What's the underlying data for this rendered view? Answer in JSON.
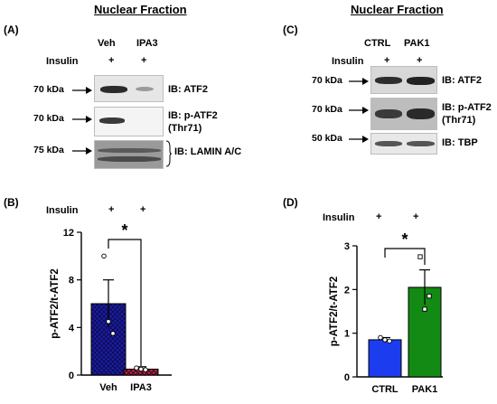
{
  "panelA": {
    "panel_label": "(A)",
    "title": "Nuclear Fraction",
    "lanes": [
      "Veh",
      "IPA3"
    ],
    "treatment_label": "Insulin",
    "treatment_marks": [
      "+",
      "+"
    ],
    "rows": [
      {
        "size": "70 kDa",
        "antibody": "IB: ATF2",
        "antibody_line2": ""
      },
      {
        "size": "70 kDa",
        "antibody": "IB: p-ATF2",
        "antibody_line2": "(Thr71)"
      },
      {
        "size": "75 kDa",
        "antibody": "IB: LAMIN A/C",
        "antibody_line2": ""
      }
    ]
  },
  "panelC": {
    "panel_label": "(C)",
    "title": "Nuclear Fraction",
    "lanes": [
      "CTRL",
      "PAK1"
    ],
    "treatment_label": "Insulin",
    "treatment_marks": [
      "+",
      "+"
    ],
    "rows": [
      {
        "size": "70 kDa",
        "antibody": "IB: ATF2",
        "antibody_line2": ""
      },
      {
        "size": "70 kDa",
        "antibody": "IB: p-ATF2",
        "antibody_line2": "(Thr71)"
      },
      {
        "size": "50 kDa",
        "antibody": "IB: TBP",
        "antibody_line2": ""
      }
    ]
  },
  "chart_data": [
    {
      "panel_label": "(B)",
      "type": "bar",
      "treatment_label": "Insulin",
      "treatment_marks": [
        "+",
        "+"
      ],
      "categories": [
        "Veh",
        "IPA3"
      ],
      "values": [
        6.0,
        0.5
      ],
      "errors": [
        2.0,
        0.2
      ],
      "points": [
        [
          10.0,
          4.5,
          3.5
        ],
        [
          0.6,
          0.5,
          0.45
        ]
      ],
      "colors": [
        "#1c1ca8",
        "#c62020"
      ],
      "ylabel": "p-ATF2/t-ATF2",
      "ylim": [
        0,
        12
      ],
      "yticks": [
        "0",
        "4",
        "8",
        "12"
      ],
      "significance": "*"
    },
    {
      "panel_label": "(D)",
      "type": "bar",
      "treatment_label": "Insulin",
      "treatment_marks": [
        "+",
        "+"
      ],
      "categories": [
        "CTRL",
        "PAK1"
      ],
      "values": [
        0.85,
        2.05
      ],
      "errors": [
        0.05,
        0.4
      ],
      "points": [
        [
          0.9,
          0.85,
          0.82
        ],
        [
          2.75,
          1.55,
          1.85
        ]
      ],
      "colors": [
        "#1c3cf0",
        "#138a13"
      ],
      "ylabel": "p-ATF2/t-ATF2",
      "ylim": [
        0,
        3
      ],
      "yticks": [
        "0",
        "1",
        "2",
        "3"
      ],
      "significance": "*"
    }
  ]
}
